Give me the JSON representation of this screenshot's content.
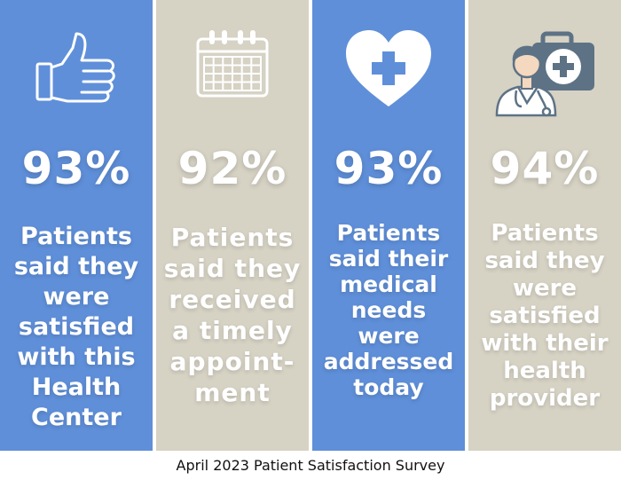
{
  "colors": {
    "blue": "#5f8fd9",
    "beige": "#d6d2c4",
    "text": "#ffffff"
  },
  "panels": [
    {
      "icon": "thumbs-up-icon",
      "percent": "93%",
      "lines": [
        "Patients",
        "said they",
        "were",
        "satisfied",
        "with this",
        "Health",
        "Center"
      ]
    },
    {
      "icon": "calendar-icon",
      "percent": "92%",
      "lines": [
        "Patients",
        "said they",
        "received",
        "a timely",
        "appoint-",
        "ment"
      ]
    },
    {
      "icon": "heart-cross-icon",
      "percent": "93%",
      "lines": [
        "Patients",
        "said their",
        "medical",
        "needs",
        "were",
        "addressed",
        "today"
      ]
    },
    {
      "icon": "doctor-medical-kit-icon",
      "percent": "94%",
      "lines": [
        "Patients",
        "said they",
        "were",
        "satisfied",
        "with their",
        "health",
        "provider"
      ]
    }
  ],
  "footer": "April 2023 Patient Satisfaction Survey"
}
